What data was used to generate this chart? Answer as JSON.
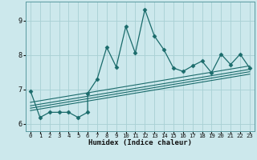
{
  "xlabel": "Humidex (Indice chaleur)",
  "bg_color": "#cce8ec",
  "grid_color": "#a8d0d4",
  "line_color": "#1a6b6b",
  "xlim": [
    -0.5,
    23.5
  ],
  "ylim": [
    5.78,
    9.55
  ],
  "yticks": [
    6,
    7,
    8,
    9
  ],
  "xticks": [
    0,
    1,
    2,
    3,
    4,
    5,
    6,
    7,
    8,
    9,
    10,
    11,
    12,
    13,
    14,
    15,
    16,
    17,
    18,
    19,
    20,
    21,
    22,
    23
  ],
  "main_series": [
    [
      0,
      6.95
    ],
    [
      1,
      6.18
    ],
    [
      2,
      6.33
    ],
    [
      3,
      6.33
    ],
    [
      4,
      6.33
    ],
    [
      5,
      6.18
    ],
    [
      6,
      6.33
    ],
    [
      6,
      6.88
    ],
    [
      7,
      7.3
    ],
    [
      8,
      8.22
    ],
    [
      9,
      7.65
    ],
    [
      10,
      8.82
    ],
    [
      11,
      8.05
    ],
    [
      12,
      9.32
    ],
    [
      13,
      8.55
    ],
    [
      14,
      8.15
    ],
    [
      15,
      7.62
    ],
    [
      16,
      7.52
    ],
    [
      17,
      7.68
    ],
    [
      18,
      7.82
    ],
    [
      19,
      7.48
    ],
    [
      20,
      8.02
    ],
    [
      21,
      7.72
    ],
    [
      22,
      8.02
    ],
    [
      23,
      7.62
    ]
  ],
  "trend_lines": [
    {
      "x0": 0,
      "y0": 6.62,
      "x1": 23,
      "y1": 7.68
    },
    {
      "x0": 0,
      "y0": 6.52,
      "x1": 23,
      "y1": 7.58
    },
    {
      "x0": 0,
      "y0": 6.45,
      "x1": 23,
      "y1": 7.51
    },
    {
      "x0": 0,
      "y0": 6.38,
      "x1": 23,
      "y1": 7.44
    }
  ]
}
